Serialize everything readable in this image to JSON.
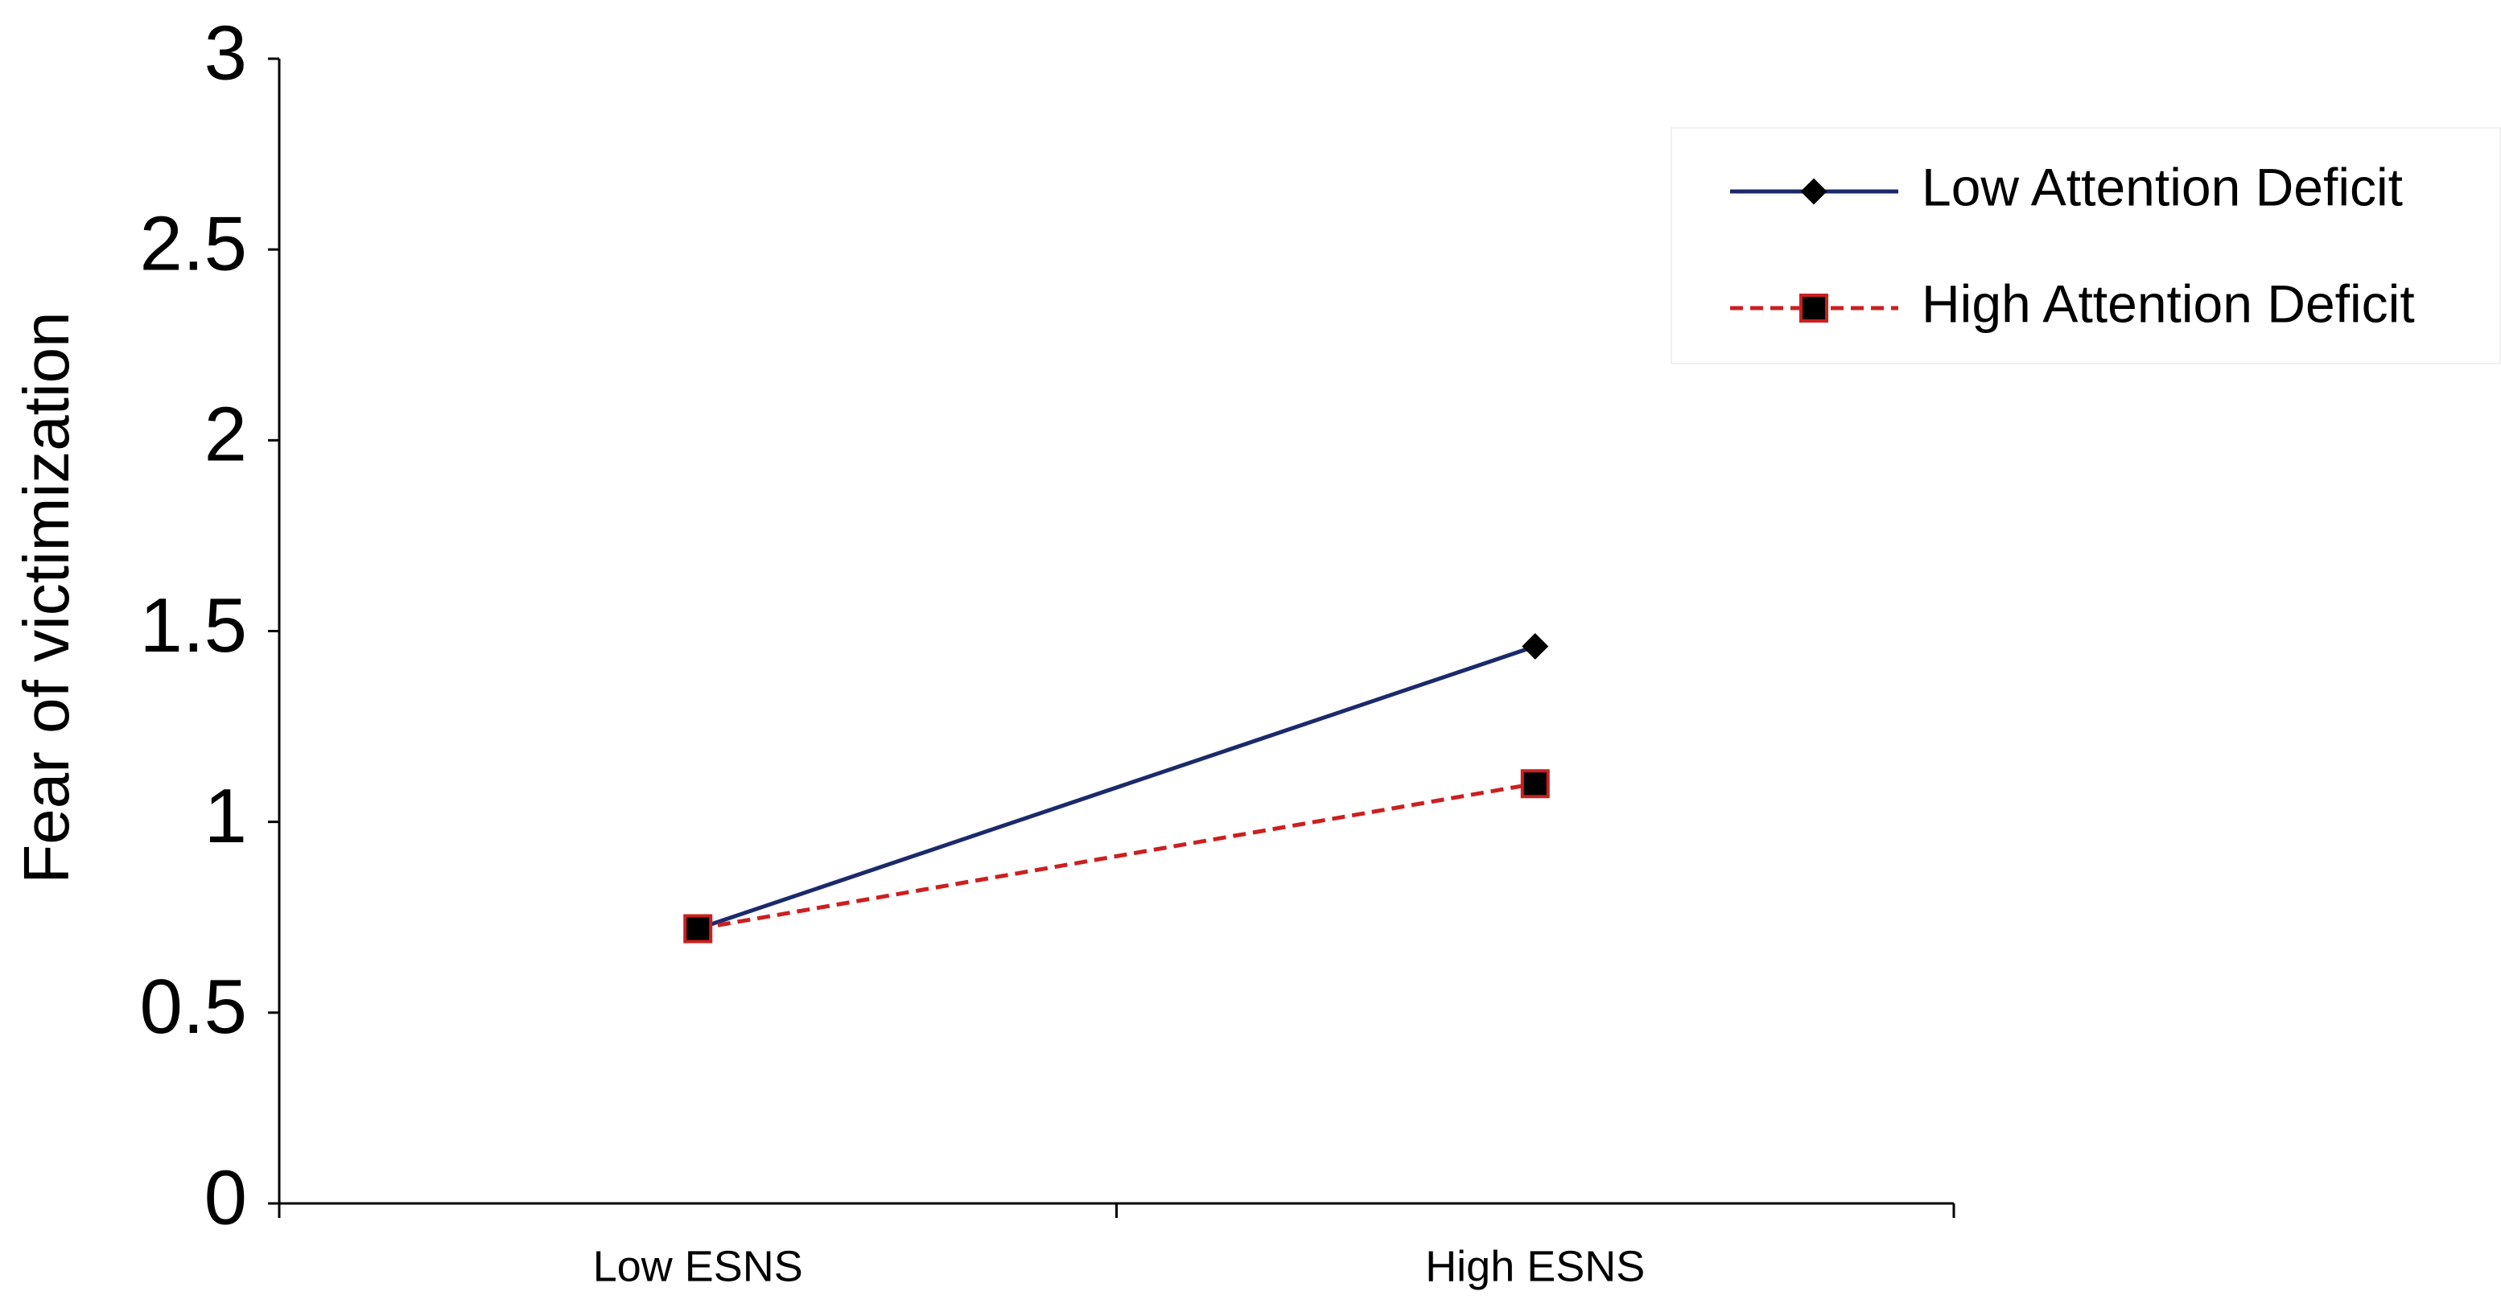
{
  "chart_data": {
    "type": "line",
    "y_label": "Fear of victimization",
    "categories": [
      "Low ESNS",
      "High ESNS"
    ],
    "series": [
      {
        "name": "Low Attention Deficit",
        "color": "#1b2a6b",
        "marker": "diamond",
        "dashed": false,
        "values": [
          0.72,
          1.46
        ]
      },
      {
        "name": "High Attention Deficit",
        "color": "#cc1f1f",
        "marker": "square",
        "dashed": true,
        "values": [
          0.72,
          1.1
        ]
      }
    ],
    "ylim": [
      0,
      3
    ],
    "yticks": [
      0,
      0.5,
      1,
      1.5,
      2,
      2.5,
      3
    ],
    "legend": "upper right"
  }
}
